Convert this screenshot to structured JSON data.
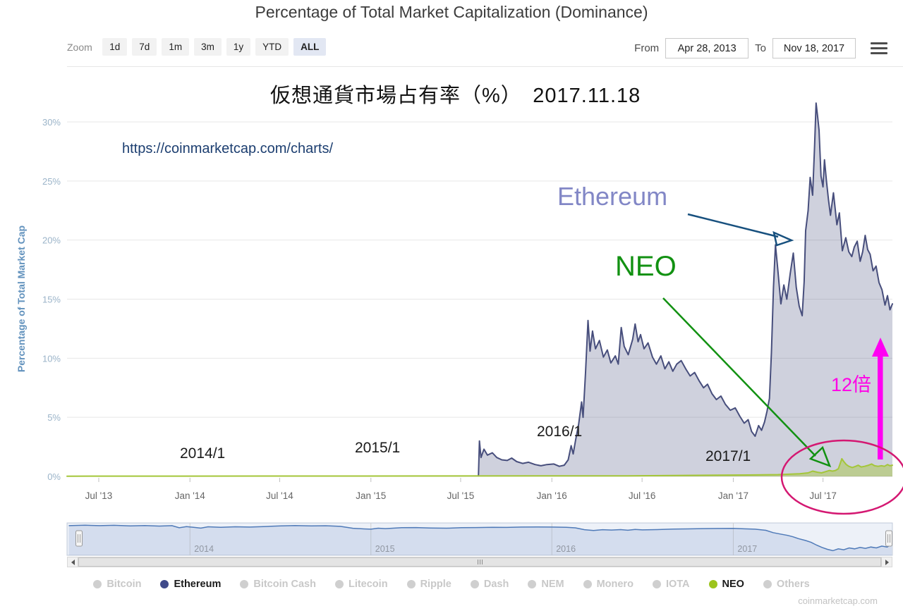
{
  "header": {
    "title": "Percentage of Total Market Capitalization (Dominance)"
  },
  "toolbar": {
    "zoom_label": "Zoom",
    "zoom_buttons": [
      {
        "label": "1d",
        "selected": false
      },
      {
        "label": "7d",
        "selected": false
      },
      {
        "label": "1m",
        "selected": false
      },
      {
        "label": "3m",
        "selected": false
      },
      {
        "label": "1y",
        "selected": false
      },
      {
        "label": "YTD",
        "selected": false
      },
      {
        "label": "ALL",
        "selected": true
      }
    ],
    "from_label": "From",
    "from_value": "Apr 28, 2013",
    "to_label": "To",
    "to_value": "Nov 18, 2017"
  },
  "annotations": {
    "jp_title": "仮想通貨市場占有率（%）　2017.11.18",
    "url": "https://coinmarketcap.com/charts/",
    "ethereum_label": "Ethereum",
    "neo_label": "NEO",
    "multiplier_label": "12倍",
    "year_markers": [
      "2014/1",
      "2015/1",
      "2016/1",
      "2017/1"
    ]
  },
  "legend": {
    "items": [
      {
        "label": "Bitcoin",
        "color": "#cfcfcf",
        "active": false
      },
      {
        "label": "Ethereum",
        "color": "#3f4a8a",
        "active": true
      },
      {
        "label": "Bitcoin Cash",
        "color": "#cfcfcf",
        "active": false
      },
      {
        "label": "Litecoin",
        "color": "#cfcfcf",
        "active": false
      },
      {
        "label": "Ripple",
        "color": "#cfcfcf",
        "active": false
      },
      {
        "label": "Dash",
        "color": "#cfcfcf",
        "active": false
      },
      {
        "label": "NEM",
        "color": "#cfcfcf",
        "active": false
      },
      {
        "label": "Monero",
        "color": "#cfcfcf",
        "active": false
      },
      {
        "label": "IOTA",
        "color": "#cfcfcf",
        "active": false
      },
      {
        "label": "NEO",
        "color": "#9cc41c",
        "active": true
      },
      {
        "label": "Others",
        "color": "#cfcfcf",
        "active": false
      }
    ]
  },
  "footer": {
    "watermark": "coinmarketcap.com"
  },
  "chart_data": {
    "type": "area",
    "title": "Percentage of Total Market Capitalization (Dominance)",
    "xlabel": "",
    "ylabel": "Percentage of Total Market Cap",
    "x_range": [
      "2013-04-28",
      "2017-11-18"
    ],
    "ylim": [
      0,
      32
    ],
    "grid": true,
    "legend_position": "bottom",
    "yticks": [
      [
        0,
        "0%"
      ],
      [
        5,
        "5%"
      ],
      [
        10,
        "10%"
      ],
      [
        15,
        "15%"
      ],
      [
        20,
        "20%"
      ],
      [
        25,
        "25%"
      ],
      [
        30,
        "30%"
      ]
    ],
    "xticks": [
      [
        "2013-07-01",
        "Jul '13"
      ],
      [
        "2014-01-01",
        "Jan '14"
      ],
      [
        "2014-07-01",
        "Jul '14"
      ],
      [
        "2015-01-01",
        "Jan '15"
      ],
      [
        "2015-07-01",
        "Jul '15"
      ],
      [
        "2016-01-01",
        "Jan '16"
      ],
      [
        "2016-07-01",
        "Jul '16"
      ],
      [
        "2017-01-01",
        "Jan '17"
      ],
      [
        "2017-07-01",
        "Jul '17"
      ]
    ],
    "series": [
      {
        "name": "Ethereum",
        "color": "#474e7c",
        "fill": "rgba(71,78,124,0.26)",
        "unit": "%",
        "points": [
          [
            "2015-08-06",
            0.05
          ],
          [
            "2015-08-08",
            3.0
          ],
          [
            "2015-08-11",
            1.6
          ],
          [
            "2015-08-17",
            2.3
          ],
          [
            "2015-08-24",
            1.8
          ],
          [
            "2015-09-03",
            2.0
          ],
          [
            "2015-09-12",
            1.6
          ],
          [
            "2015-09-22",
            1.4
          ],
          [
            "2015-10-03",
            1.35
          ],
          [
            "2015-10-12",
            1.55
          ],
          [
            "2015-10-22",
            1.25
          ],
          [
            "2015-11-03",
            1.1
          ],
          [
            "2015-11-15",
            1.2
          ],
          [
            "2015-11-28",
            1.0
          ],
          [
            "2015-12-10",
            0.9
          ],
          [
            "2015-12-22",
            1.0
          ],
          [
            "2016-01-05",
            1.05
          ],
          [
            "2016-01-16",
            0.85
          ],
          [
            "2016-01-26",
            0.95
          ],
          [
            "2016-02-03",
            1.4
          ],
          [
            "2016-02-09",
            2.6
          ],
          [
            "2016-02-13",
            1.9
          ],
          [
            "2016-02-18",
            3.1
          ],
          [
            "2016-02-24",
            4.4
          ],
          [
            "2016-03-01",
            6.3
          ],
          [
            "2016-03-04",
            5.0
          ],
          [
            "2016-03-09",
            8.8
          ],
          [
            "2016-03-14",
            13.2
          ],
          [
            "2016-03-18",
            10.6
          ],
          [
            "2016-03-23",
            12.3
          ],
          [
            "2016-03-29",
            10.8
          ],
          [
            "2016-04-06",
            11.5
          ],
          [
            "2016-04-14",
            10.1
          ],
          [
            "2016-04-22",
            10.7
          ],
          [
            "2016-04-29",
            9.6
          ],
          [
            "2016-05-08",
            10.2
          ],
          [
            "2016-05-14",
            9.5
          ],
          [
            "2016-05-20",
            12.6
          ],
          [
            "2016-05-26",
            11.0
          ],
          [
            "2016-06-03",
            10.3
          ],
          [
            "2016-06-12",
            11.6
          ],
          [
            "2016-06-17",
            12.9
          ],
          [
            "2016-06-23",
            11.4
          ],
          [
            "2016-06-28",
            12.0
          ],
          [
            "2016-07-05",
            10.8
          ],
          [
            "2016-07-13",
            11.3
          ],
          [
            "2016-07-22",
            10.1
          ],
          [
            "2016-07-30",
            9.5
          ],
          [
            "2016-08-08",
            10.2
          ],
          [
            "2016-08-16",
            9.1
          ],
          [
            "2016-08-24",
            9.7
          ],
          [
            "2016-09-01",
            8.9
          ],
          [
            "2016-09-09",
            9.5
          ],
          [
            "2016-09-18",
            9.8
          ],
          [
            "2016-09-27",
            9.1
          ],
          [
            "2016-10-06",
            8.5
          ],
          [
            "2016-10-15",
            8.8
          ],
          [
            "2016-10-24",
            8.1
          ],
          [
            "2016-11-02",
            7.5
          ],
          [
            "2016-11-10",
            7.8
          ],
          [
            "2016-11-19",
            7.0
          ],
          [
            "2016-11-28",
            6.5
          ],
          [
            "2016-12-07",
            6.8
          ],
          [
            "2016-12-16",
            6.1
          ],
          [
            "2016-12-26",
            5.6
          ],
          [
            "2017-01-05",
            5.8
          ],
          [
            "2017-01-14",
            5.1
          ],
          [
            "2017-01-23",
            4.5
          ],
          [
            "2017-01-31",
            4.8
          ],
          [
            "2017-02-07",
            3.8
          ],
          [
            "2017-02-14",
            3.4
          ],
          [
            "2017-02-21",
            4.3
          ],
          [
            "2017-02-27",
            3.9
          ],
          [
            "2017-03-05",
            4.6
          ],
          [
            "2017-03-10",
            5.5
          ],
          [
            "2017-03-15",
            6.6
          ],
          [
            "2017-03-19",
            10.5
          ],
          [
            "2017-03-23",
            16.0
          ],
          [
            "2017-03-27",
            19.6
          ],
          [
            "2017-04-01",
            17.4
          ],
          [
            "2017-04-07",
            14.6
          ],
          [
            "2017-04-13",
            16.2
          ],
          [
            "2017-04-19",
            15.0
          ],
          [
            "2017-04-26",
            17.2
          ],
          [
            "2017-05-02",
            18.9
          ],
          [
            "2017-05-08",
            16.0
          ],
          [
            "2017-05-14",
            14.4
          ],
          [
            "2017-05-20",
            13.6
          ],
          [
            "2017-05-24",
            16.5
          ],
          [
            "2017-05-27",
            20.8
          ],
          [
            "2017-06-01",
            22.5
          ],
          [
            "2017-06-05",
            25.3
          ],
          [
            "2017-06-10",
            23.8
          ],
          [
            "2017-06-14",
            28.0
          ],
          [
            "2017-06-17",
            31.6
          ],
          [
            "2017-06-20",
            30.5
          ],
          [
            "2017-06-23",
            29.3
          ],
          [
            "2017-06-27",
            25.4
          ],
          [
            "2017-07-01",
            24.5
          ],
          [
            "2017-07-04",
            26.8
          ],
          [
            "2017-07-08",
            25.0
          ],
          [
            "2017-07-12",
            23.4
          ],
          [
            "2017-07-16",
            22.1
          ],
          [
            "2017-07-22",
            24.0
          ],
          [
            "2017-07-29",
            21.3
          ],
          [
            "2017-08-03",
            22.3
          ],
          [
            "2017-08-09",
            19.1
          ],
          [
            "2017-08-16",
            20.2
          ],
          [
            "2017-08-22",
            19.0
          ],
          [
            "2017-08-28",
            18.6
          ],
          [
            "2017-09-02",
            19.4
          ],
          [
            "2017-09-08",
            19.9
          ],
          [
            "2017-09-14",
            18.2
          ],
          [
            "2017-09-19",
            19.0
          ],
          [
            "2017-09-24",
            20.4
          ],
          [
            "2017-09-29",
            19.2
          ],
          [
            "2017-10-04",
            18.8
          ],
          [
            "2017-10-10",
            17.4
          ],
          [
            "2017-10-16",
            17.8
          ],
          [
            "2017-10-22",
            16.4
          ],
          [
            "2017-10-28",
            15.8
          ],
          [
            "2017-11-03",
            14.5
          ],
          [
            "2017-11-08",
            15.3
          ],
          [
            "2017-11-13",
            14.1
          ],
          [
            "2017-11-18",
            14.6
          ]
        ]
      },
      {
        "name": "NEO",
        "color": "#a4c639",
        "fill": "rgba(164,198,57,0.45)",
        "unit": "%",
        "points": [
          [
            "2013-04-28",
            0.02
          ],
          [
            "2016-06-01",
            0.05
          ],
          [
            "2016-09-01",
            0.07
          ],
          [
            "2016-12-01",
            0.1
          ],
          [
            "2017-02-01",
            0.12
          ],
          [
            "2017-04-01",
            0.15
          ],
          [
            "2017-05-15",
            0.22
          ],
          [
            "2017-06-01",
            0.3
          ],
          [
            "2017-06-10",
            0.45
          ],
          [
            "2017-06-20",
            0.35
          ],
          [
            "2017-06-28",
            0.3
          ],
          [
            "2017-07-06",
            0.4
          ],
          [
            "2017-07-14",
            0.5
          ],
          [
            "2017-07-20",
            0.45
          ],
          [
            "2017-07-26",
            0.5
          ],
          [
            "2017-08-01",
            0.65
          ],
          [
            "2017-08-08",
            1.5
          ],
          [
            "2017-08-12",
            1.25
          ],
          [
            "2017-08-17",
            1.0
          ],
          [
            "2017-08-22",
            0.85
          ],
          [
            "2017-08-29",
            0.75
          ],
          [
            "2017-09-05",
            0.85
          ],
          [
            "2017-09-10",
            0.95
          ],
          [
            "2017-09-16",
            0.8
          ],
          [
            "2017-09-23",
            0.85
          ],
          [
            "2017-10-01",
            0.95
          ],
          [
            "2017-10-07",
            1.05
          ],
          [
            "2017-10-13",
            0.9
          ],
          [
            "2017-10-20",
            0.85
          ],
          [
            "2017-10-27",
            0.9
          ],
          [
            "2017-11-02",
            0.85
          ],
          [
            "2017-11-08",
            1.0
          ],
          [
            "2017-11-13",
            0.9
          ],
          [
            "2017-11-18",
            0.95
          ]
        ]
      }
    ],
    "navigator": {
      "name": "Bitcoin dominance (navigator)",
      "ylim": [
        30,
        100
      ],
      "year_labels": [
        "2014",
        "2015",
        "2016",
        "2017"
      ],
      "points": [
        [
          2013.33,
          94
        ],
        [
          2013.42,
          95
        ],
        [
          2013.5,
          94
        ],
        [
          2013.58,
          94.8
        ],
        [
          2013.67,
          93.6
        ],
        [
          2013.75,
          94.2
        ],
        [
          2013.83,
          93.2
        ],
        [
          2013.9,
          94
        ],
        [
          2013.94,
          89.5
        ],
        [
          2013.98,
          92
        ],
        [
          2014.02,
          90.5
        ],
        [
          2014.06,
          88.8
        ],
        [
          2014.1,
          91.6
        ],
        [
          2014.17,
          90.6
        ],
        [
          2014.25,
          91.6
        ],
        [
          2014.33,
          91
        ],
        [
          2014.42,
          92.2
        ],
        [
          2014.5,
          93.6
        ],
        [
          2014.58,
          94.2
        ],
        [
          2014.67,
          93.6
        ],
        [
          2014.75,
          93.9
        ],
        [
          2014.83,
          92.6
        ],
        [
          2014.9,
          88.5
        ],
        [
          2014.96,
          87
        ],
        [
          2015.0,
          86.5
        ],
        [
          2015.04,
          88.6
        ],
        [
          2015.08,
          87.6
        ],
        [
          2015.17,
          89.6
        ],
        [
          2015.25,
          90
        ],
        [
          2015.33,
          89
        ],
        [
          2015.42,
          88.6
        ],
        [
          2015.5,
          89.6
        ],
        [
          2015.58,
          90
        ],
        [
          2015.67,
          90.6
        ],
        [
          2015.75,
          90.2
        ],
        [
          2015.83,
          91
        ],
        [
          2015.92,
          91.4
        ],
        [
          2016.0,
          91
        ],
        [
          2016.08,
          90.4
        ],
        [
          2016.13,
          89.4
        ],
        [
          2016.18,
          85.4
        ],
        [
          2016.23,
          83.6
        ],
        [
          2016.28,
          85.4
        ],
        [
          2016.33,
          84.6
        ],
        [
          2016.38,
          85.6
        ],
        [
          2016.42,
          84.2
        ],
        [
          2016.46,
          86
        ],
        [
          2016.5,
          85
        ],
        [
          2016.58,
          85.6
        ],
        [
          2016.67,
          86.6
        ],
        [
          2016.75,
          87
        ],
        [
          2016.83,
          87.6
        ],
        [
          2016.92,
          88
        ],
        [
          2017.0,
          88.2
        ],
        [
          2017.06,
          87.2
        ],
        [
          2017.12,
          86.4
        ],
        [
          2017.18,
          84
        ],
        [
          2017.22,
          79
        ],
        [
          2017.26,
          76
        ],
        [
          2017.3,
          73
        ],
        [
          2017.33,
          70
        ],
        [
          2017.36,
          66
        ],
        [
          2017.4,
          62
        ],
        [
          2017.43,
          58
        ],
        [
          2017.46,
          52
        ],
        [
          2017.49,
          47
        ],
        [
          2017.52,
          43
        ],
        [
          2017.55,
          40
        ],
        [
          2017.58,
          44
        ],
        [
          2017.61,
          42
        ],
        [
          2017.64,
          46
        ],
        [
          2017.67,
          44
        ],
        [
          2017.7,
          47
        ],
        [
          2017.73,
          45
        ],
        [
          2017.76,
          48
        ],
        [
          2017.79,
          46
        ],
        [
          2017.82,
          50
        ],
        [
          2017.85,
          48
        ],
        [
          2017.87,
          53
        ],
        [
          2017.875,
          56
        ]
      ]
    }
  }
}
